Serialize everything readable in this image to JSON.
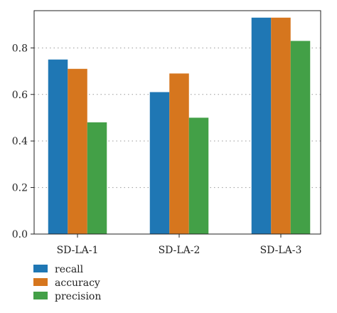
{
  "chart_data": {
    "type": "bar",
    "title": "",
    "xlabel": "",
    "ylabel": "",
    "categories": [
      "SD-LA-1",
      "SD-LA-2",
      "SD-LA-3"
    ],
    "series": [
      {
        "name": "recall",
        "color": "#1f77b4",
        "values": [
          0.75,
          0.61,
          0.93
        ]
      },
      {
        "name": "accuracy",
        "color": "#d6761e",
        "values": [
          0.71,
          0.69,
          0.93
        ]
      },
      {
        "name": "precision",
        "color": "#43a047",
        "values": [
          0.48,
          0.5,
          0.83
        ]
      }
    ],
    "ylim": [
      0,
      0.96
    ],
    "yticks": [
      0.0,
      0.2,
      0.4,
      0.6,
      0.8
    ],
    "ytick_labels": [
      "0.0",
      "0.2",
      "0.4",
      "0.6",
      "0.8"
    ],
    "grid": "horizontal-dotted",
    "legend_position": "bottom-left"
  }
}
